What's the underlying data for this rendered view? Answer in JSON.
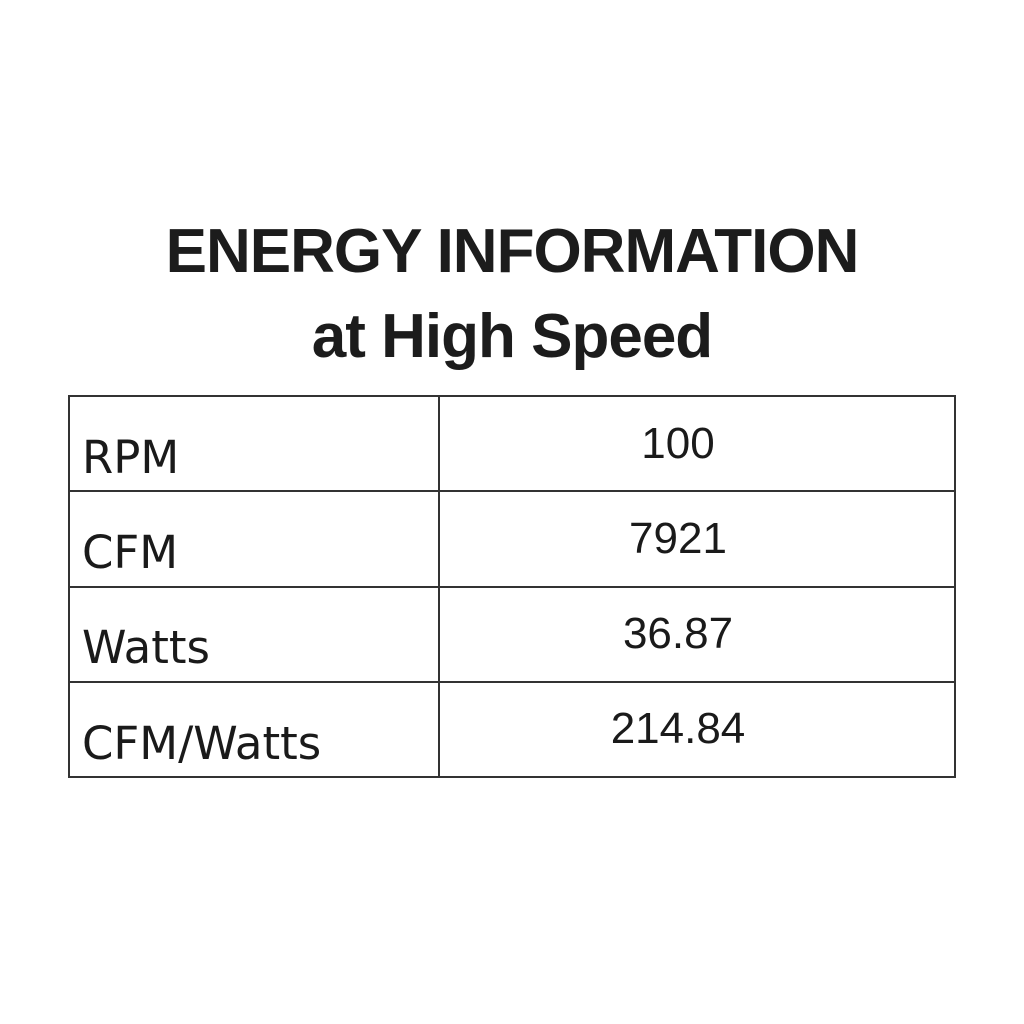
{
  "title": {
    "line1": "ENERGY INFORMATION",
    "line2": "at High Speed"
  },
  "table": {
    "rows": [
      {
        "label": "RPM",
        "value": "100"
      },
      {
        "label": "CFM",
        "value": "7921"
      },
      {
        "label": "Watts",
        "value": "36.87"
      },
      {
        "label": "CFM/Watts",
        "value": "214.84"
      }
    ]
  },
  "colors": {
    "background": "#ffffff",
    "text": "#1a1a1a",
    "title_text": "#1c1c1c",
    "table_border": "#333333"
  }
}
